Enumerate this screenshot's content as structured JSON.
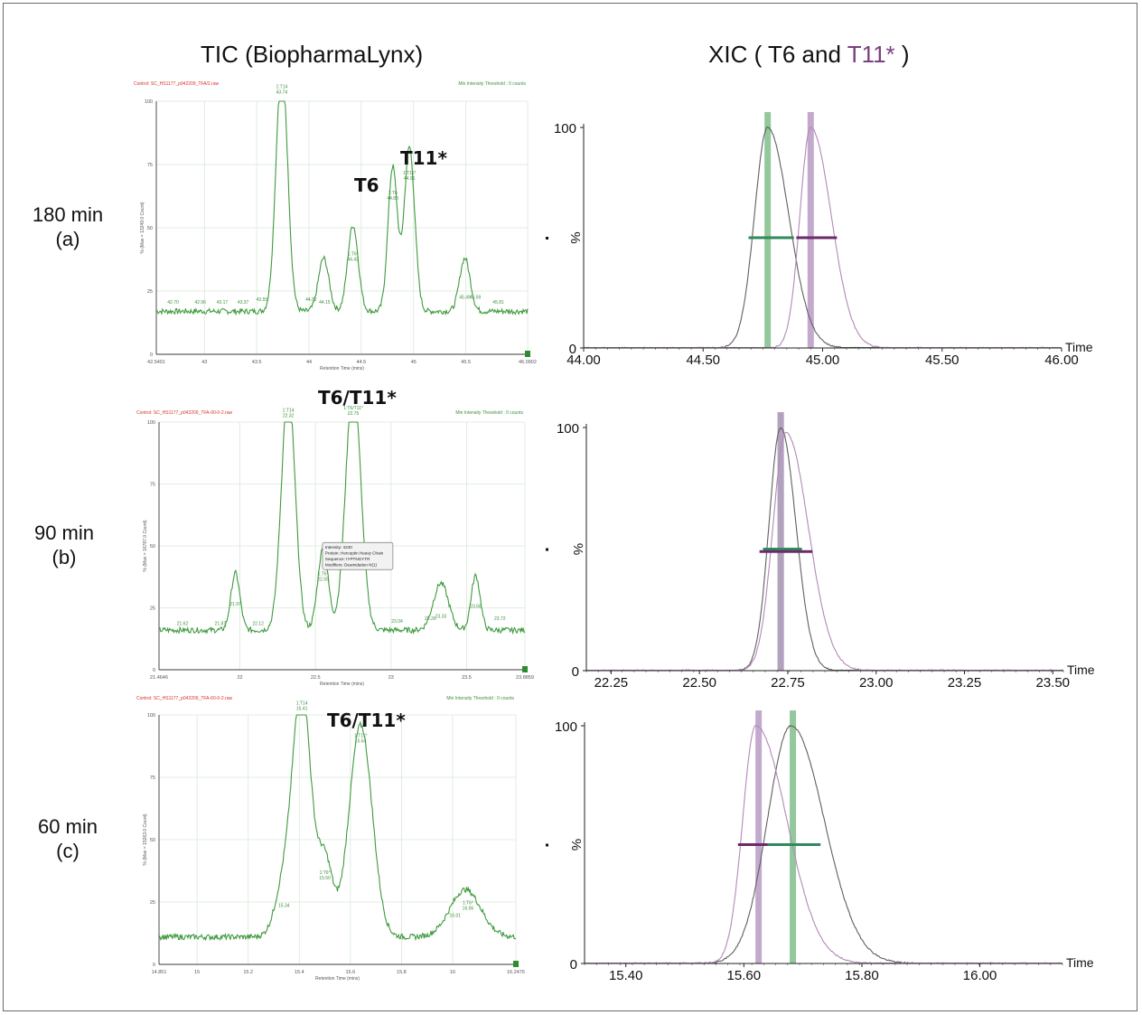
{
  "titles": {
    "tic": "TIC (BiopharmaLynx)",
    "xic_prefix": "XIC ( T6 and ",
    "xic_t11": "T11*",
    "xic_suffix": " )"
  },
  "rows": [
    {
      "time": "180 min",
      "letter": "(a)"
    },
    {
      "time": "90 min",
      "letter": "(b)"
    },
    {
      "time": "60 min",
      "letter": "(c)"
    }
  ],
  "colors": {
    "tic_trace": "#3f9a3f",
    "tic_label": "#3f8f3f",
    "tic_header": "#d8312a",
    "xic_t6_trace": "#606060",
    "xic_t11_trace": "#b488ba",
    "t6_bar": "#8dc598",
    "t11_bar": "#b99bc4",
    "t6_width_line": "#2f8a5c",
    "t11_width_line": "#6b2a6a",
    "t11_text": "#7a3f7e"
  },
  "chart_data": [
    {
      "type": "line",
      "panel": "TIC 180 min (a)",
      "header_left": "Control: SC_HS1177_p042209_TFA/2.raw",
      "header_right": "Min Intensity Threshold : 0 counts",
      "ylabel": "% (Max = 13249.0 Count)",
      "xlabel": "Retention Time (mins)",
      "xlim": [
        42.5401,
        46.0902
      ],
      "ylim": [
        0,
        100
      ],
      "x_ticks": [
        "42.5401",
        "43",
        "43.5",
        "44",
        "44.5",
        "45",
        "45.5",
        "46.0902"
      ],
      "y_ticks": [
        "0",
        "25",
        "50",
        "75",
        "100"
      ],
      "callout": "T6",
      "callout2": "T11*",
      "peaks": [
        {
          "x": 43.74,
          "h": 99,
          "w": 0.055
        },
        {
          "x": 44.42,
          "h": 34,
          "w": 0.05
        },
        {
          "x": 44.8,
          "h": 57,
          "w": 0.045
        },
        {
          "x": 44.96,
          "h": 65,
          "w": 0.05
        },
        {
          "x": 44.14,
          "h": 21,
          "w": 0.05
        },
        {
          "x": 45.49,
          "h": 21,
          "w": 0.05
        }
      ],
      "baseline": 17,
      "peak_labels": [
        {
          "x": 43.74,
          "y": 103,
          "l1": "1:T14",
          "l2": "43.74"
        },
        {
          "x": 44.42,
          "y": 37,
          "l1": "1:T6*",
          "l2": "44.42"
        },
        {
          "x": 44.8,
          "y": 61,
          "l1": "1:T6",
          "l2": "44.80"
        },
        {
          "x": 44.96,
          "y": 69,
          "l1": "1:T11*",
          "l2": "44.96"
        },
        {
          "x": 42.7,
          "y": 20,
          "l1": "",
          "l2": "42.70"
        },
        {
          "x": 42.96,
          "y": 20,
          "l1": "",
          "l2": "42.96"
        },
        {
          "x": 43.17,
          "y": 20,
          "l1": "",
          "l2": "43.17"
        },
        {
          "x": 43.37,
          "y": 20,
          "l1": "",
          "l2": "43.37"
        },
        {
          "x": 43.55,
          "y": 21,
          "l1": "",
          "l2": "43.55"
        },
        {
          "x": 44.02,
          "y": 21,
          "l1": "",
          "l2": "44.02"
        },
        {
          "x": 44.15,
          "y": 20,
          "l1": "",
          "l2": "44.15"
        },
        {
          "x": 45.49,
          "y": 22,
          "l1": "",
          "l2": "45.49"
        },
        {
          "x": 45.59,
          "y": 22,
          "l1": "",
          "l2": "45.59"
        },
        {
          "x": 45.81,
          "y": 20,
          "l1": "",
          "l2": "45.81"
        }
      ]
    },
    {
      "type": "line",
      "panel": "TIC 90 min (b)",
      "header_left": "Control: SC_HS1177_p042209_TFA-90-0-2.raw",
      "header_right": "Min Intensity Threshold : 0 counts",
      "ylabel": "% (Max = 16787.0 Count)",
      "xlabel": "Retention Time (mins)",
      "xlim": [
        21.4646,
        23.8859
      ],
      "ylim": [
        0,
        100
      ],
      "x_ticks": [
        "21.4646",
        "22",
        "22.5",
        "23",
        "23.5",
        "23.8859"
      ],
      "y_ticks": [
        "0",
        "25",
        "50",
        "75",
        "100"
      ],
      "callout": "T6/T11*",
      "peaks": [
        {
          "x": 22.32,
          "h": 98,
          "w": 0.045
        },
        {
          "x": 22.75,
          "h": 100,
          "w": 0.05
        },
        {
          "x": 22.55,
          "h": 33,
          "w": 0.035
        },
        {
          "x": 21.97,
          "h": 23,
          "w": 0.03
        },
        {
          "x": 23.33,
          "h": 19,
          "w": 0.05
        },
        {
          "x": 23.56,
          "h": 22,
          "w": 0.03
        }
      ],
      "baseline": 16,
      "tooltip": {
        "x": 22.57,
        "y": 47,
        "lines": [
          "Intensity: 4240",
          "Protein: Herceptin Heavy Chain",
          "Sequence: IYPTNGYTR",
          "Modifiers: Deamidation N(1)"
        ]
      },
      "peak_labels": [
        {
          "x": 22.32,
          "y": 102,
          "l1": "1:T14",
          "l2": "22.32"
        },
        {
          "x": 22.75,
          "y": 103,
          "l1": "1:T6/T11*",
          "l2": "22.75"
        },
        {
          "x": 22.55,
          "y": 36,
          "l1": "1:T6*",
          "l2": "22.55"
        },
        {
          "x": 21.62,
          "y": 18,
          "l1": "",
          "l2": "21.62"
        },
        {
          "x": 21.87,
          "y": 18,
          "l1": "",
          "l2": "21.87"
        },
        {
          "x": 21.97,
          "y": 26,
          "l1": "",
          "l2": "21.97"
        },
        {
          "x": 22.12,
          "y": 18,
          "l1": "",
          "l2": "22.12"
        },
        {
          "x": 23.04,
          "y": 19,
          "l1": "",
          "l2": "23.04"
        },
        {
          "x": 23.26,
          "y": 20,
          "l1": "",
          "l2": "23.26"
        },
        {
          "x": 23.33,
          "y": 21,
          "l1": "",
          "l2": "23.33"
        },
        {
          "x": 23.56,
          "y": 25,
          "l1": "",
          "l2": "23.56"
        },
        {
          "x": 23.72,
          "y": 20,
          "l1": "",
          "l2": "23.72"
        }
      ]
    },
    {
      "type": "line",
      "panel": "TIC 60 min (c)",
      "header_left": "Control: SC_HS1177_p042209_TFA-60-0-2.raw",
      "header_right": "Min Intensity Threshold : 0 counts",
      "ylabel": "% (Max = 15263.0 Count)",
      "xlabel": "Retention Time (mins)",
      "xlim": [
        14.851,
        16.2476
      ],
      "ylim": [
        0,
        100
      ],
      "x_ticks": [
        "14.851",
        "15",
        "15.2",
        "15.4",
        "15.6",
        "15.8",
        "16",
        "16.2476"
      ],
      "y_ticks": [
        "0",
        "25",
        "50",
        "75",
        "100"
      ],
      "callout": "T6/T11*",
      "peaks": [
        {
          "x": 15.41,
          "h": 99,
          "w": 0.035
        },
        {
          "x": 15.64,
          "h": 85,
          "w": 0.045
        },
        {
          "x": 15.5,
          "h": 31,
          "w": 0.03
        },
        {
          "x": 15.34,
          "h": 20,
          "w": 0.035
        },
        {
          "x": 16.05,
          "h": 19,
          "w": 0.06
        }
      ],
      "baseline": 11,
      "peak_labels": [
        {
          "x": 15.41,
          "y": 102,
          "l1": "1:T14",
          "l2": "15.41"
        },
        {
          "x": 15.64,
          "y": 89,
          "l1": "1:T11*",
          "l2": "15.64"
        },
        {
          "x": 15.5,
          "y": 34,
          "l1": "1:T6*",
          "l2": "15.50"
        },
        {
          "x": 15.34,
          "y": 23,
          "l1": "",
          "l2": "15.34"
        },
        {
          "x": 16.01,
          "y": 19,
          "l1": "",
          "l2": "16.01"
        },
        {
          "x": 16.06,
          "y": 22,
          "l1": "1:T6*",
          "l2": "16.06"
        }
      ]
    },
    {
      "type": "line",
      "panel": "XIC 180 min (a)",
      "xlabel": "Time",
      "ylabel": "%",
      "xlim": [
        44.0,
        46.0
      ],
      "ylim": [
        0,
        100
      ],
      "x_ticks": [
        "44.00",
        "44.50",
        "45.00",
        "45.50",
        "46.00"
      ],
      "y_ticks": [
        "0",
        "100"
      ],
      "series": [
        {
          "name": "T6",
          "peak": 44.77,
          "h": 100,
          "w": 0.055,
          "tail": 1.6
        },
        {
          "name": "T11*",
          "peak": 44.95,
          "h": 100,
          "w": 0.045,
          "tail": 1.9
        }
      ],
      "bars": [
        {
          "series": "T6",
          "x": 44.77
        },
        {
          "series": "T11*",
          "x": 44.95
        }
      ],
      "width_lines": [
        {
          "series": "T6",
          "x1": 44.69,
          "x2": 44.88,
          "y": 50
        },
        {
          "series": "T11*",
          "x1": 44.89,
          "x2": 45.06,
          "y": 50
        }
      ]
    },
    {
      "type": "line",
      "panel": "XIC 90 min (b)",
      "xlabel": "Time",
      "ylabel": "%",
      "xlim": [
        22.18,
        23.53
      ],
      "ylim": [
        0,
        100
      ],
      "x_ticks": [
        "22.25",
        "22.50",
        "22.75",
        "23.00",
        "23.25",
        "23.50"
      ],
      "y_ticks": [
        "0",
        "100"
      ],
      "series": [
        {
          "name": "T6",
          "peak": 22.73,
          "h": 100,
          "w": 0.033,
          "tail": 1.3
        },
        {
          "name": "T11*",
          "peak": 22.745,
          "h": 98,
          "w": 0.037,
          "tail": 1.7
        }
      ],
      "bars": [
        {
          "series": "T6",
          "x": 22.73
        },
        {
          "series": "T11*",
          "x": 22.73
        }
      ],
      "width_lines": [
        {
          "series": "T6",
          "x1": 22.68,
          "x2": 22.79,
          "y": 50
        },
        {
          "series": "T11*",
          "x1": 22.67,
          "x2": 22.82,
          "y": 49
        }
      ]
    },
    {
      "type": "line",
      "panel": "XIC 60 min (c)",
      "xlabel": "Time",
      "ylabel": "%",
      "xlim": [
        15.33,
        16.14
      ],
      "ylim": [
        0,
        100
      ],
      "x_ticks": [
        "15.40",
        "15.60",
        "15.80",
        "16.00"
      ],
      "y_ticks": [
        "0",
        "100"
      ],
      "series": [
        {
          "name": "T6",
          "peak": 15.68,
          "h": 100,
          "w": 0.04,
          "tail": 1.4
        },
        {
          "name": "T11*",
          "peak": 15.62,
          "h": 100,
          "w": 0.022,
          "tail": 2.4
        }
      ],
      "bars": [
        {
          "series": "T11*",
          "x": 15.625
        },
        {
          "series": "T6",
          "x": 15.683
        }
      ],
      "width_lines": [
        {
          "series": "T11*",
          "x1": 15.59,
          "x2": 15.67,
          "y": 50
        },
        {
          "series": "T6",
          "x1": 15.64,
          "x2": 15.73,
          "y": 50
        }
      ]
    }
  ]
}
